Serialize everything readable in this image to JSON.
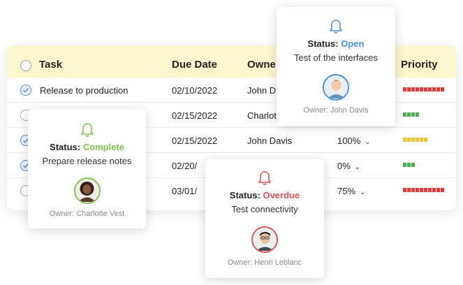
{
  "table": {
    "headers": {
      "task": "Task",
      "due": "Due Date",
      "owner": "Owne",
      "priority": "Priority"
    },
    "rows": [
      {
        "task": "Release to production",
        "due": "02/10/2022",
        "owner": "John Da",
        "pct": "",
        "checked": true,
        "priority_color": "#e53935",
        "priority_blocks": 10
      },
      {
        "task": "",
        "due": "02/15/2022",
        "owner": "Charlot",
        "pct": "",
        "checked": false,
        "priority_color": "#4caf50",
        "priority_blocks": 4
      },
      {
        "task": "",
        "due": "02/15/2022",
        "owner": "John Davis",
        "pct": "100%",
        "checked": true,
        "priority_color": "#f4c430",
        "priority_blocks": 6
      },
      {
        "task": "on",
        "due": "02/20/",
        "owner": "",
        "pct": "0%",
        "checked": true,
        "priority_color": "#4caf50",
        "priority_blocks": 3
      },
      {
        "task": "",
        "due": "03/01/",
        "owner": "",
        "pct": "75%",
        "checked": false,
        "priority_color": "#e53935",
        "priority_blocks": 10
      }
    ]
  },
  "cards": {
    "open": {
      "status_label": "Status:",
      "status_value": "Open",
      "status_color": "#4a90e2",
      "title": "Test of the interfaces",
      "owner": "Owner: John Davis"
    },
    "complete": {
      "status_label": "Status:",
      "status_value": "Complete",
      "status_color": "#7cc34f",
      "title": "Prepare release notes",
      "owner": "Owner: Charlotte Vest"
    },
    "overdue": {
      "status_label": "Status:",
      "status_value": "Overdue",
      "status_color": "#e05252",
      "title": "Test connectivity",
      "owner": "Owner: Henri Leblanc"
    }
  },
  "icons": {
    "bell": "bell-icon",
    "check": "check-icon",
    "chevron": "chevron-down-icon"
  }
}
